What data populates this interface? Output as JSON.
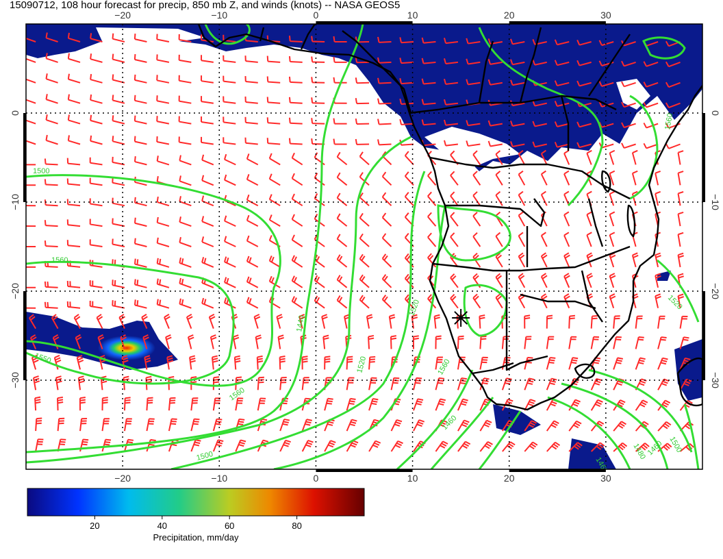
{
  "title": "15090712, 108 hour forecast for precip, 850 mb Z, and winds (knots) -- NASA GEOS5",
  "map": {
    "lon_range": [
      -30,
      40
    ],
    "lat_range": [
      -40,
      10
    ],
    "lon_ticks": [
      -20,
      -10,
      0,
      10,
      20,
      30
    ],
    "lat_ticks": [
      0,
      -10,
      -20,
      -30
    ],
    "lon_tick_labels": [
      "−20",
      "−10",
      "0",
      "10",
      "20",
      "30"
    ],
    "lat_tick_labels": [
      "0",
      "−10",
      "−20",
      "−30"
    ],
    "contour_labels": [
      "1500",
      "1560",
      "1550",
      "1560",
      "1500",
      "1520",
      "1520",
      "1440",
      "1560",
      "1560",
      "1460",
      "1460",
      "1480",
      "1460",
      "1500",
      "1520"
    ],
    "marker": {
      "lon": 15,
      "lat": -23
    },
    "colors": {
      "barbs": "#ff2a2a",
      "contours": "#33dd33",
      "coast": "#000000",
      "precip_low": "#0a1a8c"
    }
  },
  "colorbar": {
    "ticks": [
      "20",
      "40",
      "60",
      "80"
    ],
    "label": "Precipitation, mm/day",
    "range": [
      0,
      100
    ]
  }
}
